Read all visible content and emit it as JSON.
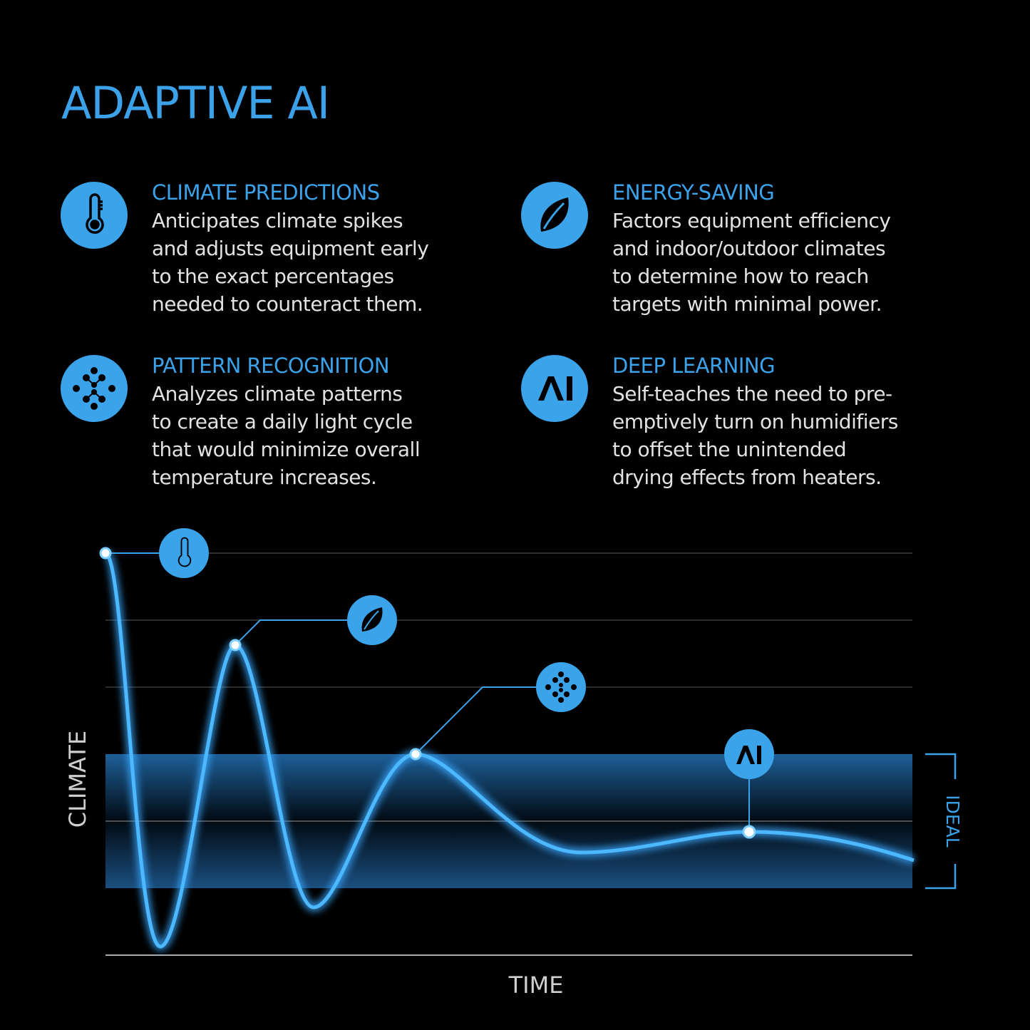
{
  "title": "ADAPTIVE AI",
  "features": [
    {
      "icon": "thermometer-icon",
      "heading": "CLIMATE PREDICTIONS",
      "body": "Anticipates climate spikes\nand adjusts equipment early\nto the exact percentages\nneeded to counteract them."
    },
    {
      "icon": "leaf-icon",
      "heading": "ENERGY-SAVING",
      "body": "Factors equipment efficiency\nand indoor/outdoor climates\nto determine how to reach\ntargets with minimal power."
    },
    {
      "icon": "pattern-icon",
      "heading": "PATTERN RECOGNITION",
      "body": "Analyzes climate patterns\nto create a daily light cycle\nthat would minimize overall\ntemperature increases."
    },
    {
      "icon": "ai-icon",
      "heading": "DEEP LEARNING",
      "body": "Self-teaches the need to pre-\nemptively turn on humidifiers\nto offset the unintended\ndrying effects from heaters."
    }
  ],
  "diagram": {
    "y_label": "CLIMATE",
    "x_label": "TIME",
    "band_label": "IDEAL",
    "ai_icon_text": "AI"
  },
  "colors": {
    "accent": "#3aa3ea",
    "background": "#000000",
    "text": "#e2e2e2"
  }
}
